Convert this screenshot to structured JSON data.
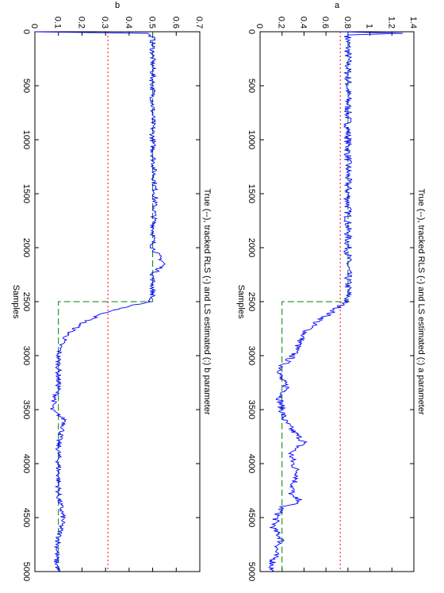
{
  "chart_data": [
    {
      "type": "line",
      "panel": "top",
      "title": "True (--), tracked RLS (-) and LS estimated (:) a parameter",
      "xlabel": "Samples",
      "ylabel": "a",
      "xlim": [
        0,
        5000
      ],
      "ylim": [
        0,
        1.4
      ],
      "xticks": [
        "0",
        "500",
        "1000",
        "1500",
        "2000",
        "2500",
        "3000",
        "3500",
        "4000",
        "4500",
        "5000"
      ],
      "yticks": [
        "0",
        "0.2",
        "0.4",
        "0.6",
        "0.8",
        "1",
        "1.2",
        "1.4"
      ],
      "grid": false,
      "series": [
        {
          "style": "dashed",
          "color": "#008000",
          "points": [
            [
              0,
              0.8
            ],
            [
              2500,
              0.8
            ],
            [
              2500,
              0.2
            ],
            [
              5000,
              0.2
            ]
          ]
        },
        {
          "style": "dotted",
          "color": "#ff0000",
          "points": [
            [
              0,
              0.73
            ],
            [
              5000,
              0.73
            ]
          ]
        },
        {
          "style": "solid",
          "color": "#0000ff",
          "points": [
            [
              0,
              0.75
            ],
            [
              15,
              1.3
            ],
            [
              30,
              0.8
            ],
            [
              100,
              0.8
            ],
            [
              500,
              0.8
            ],
            [
              1000,
              0.8
            ],
            [
              1500,
              0.8
            ],
            [
              2000,
              0.8
            ],
            [
              2450,
              0.8
            ],
            [
              2500,
              0.78
            ],
            [
              2600,
              0.65
            ],
            [
              2700,
              0.5
            ],
            [
              2800,
              0.4
            ],
            [
              2900,
              0.35
            ],
            [
              3000,
              0.3
            ],
            [
              3100,
              0.2
            ],
            [
              3200,
              0.18
            ],
            [
              3300,
              0.25
            ],
            [
              3400,
              0.18
            ],
            [
              3500,
              0.2
            ],
            [
              3600,
              0.22
            ],
            [
              3700,
              0.3
            ],
            [
              3800,
              0.4
            ],
            [
              3900,
              0.28
            ],
            [
              4000,
              0.3
            ],
            [
              4100,
              0.35
            ],
            [
              4200,
              0.3
            ],
            [
              4300,
              0.28
            ],
            [
              4350,
              0.38
            ],
            [
              4400,
              0.2
            ],
            [
              4500,
              0.15
            ],
            [
              4600,
              0.12
            ],
            [
              4700,
              0.2
            ],
            [
              4800,
              0.15
            ],
            [
              4900,
              0.12
            ],
            [
              5000,
              0.1
            ]
          ],
          "noise": 0.035
        }
      ]
    },
    {
      "type": "line",
      "panel": "bottom",
      "title": "True (--), tracked RLS (-) and LS estimated (:) b parameter",
      "xlabel": "Samples",
      "ylabel": "b",
      "xlim": [
        0,
        5000
      ],
      "ylim": [
        0,
        0.7
      ],
      "xticks": [
        "0",
        "500",
        "1000",
        "1500",
        "2000",
        "2500",
        "3000",
        "3500",
        "4000",
        "4500",
        "5000"
      ],
      "yticks": [
        "0",
        "0.1",
        "0.2",
        "0.3",
        "0.4",
        "0.5",
        "0.6",
        "0.7"
      ],
      "grid": false,
      "series": [
        {
          "style": "dashed",
          "color": "#008000",
          "points": [
            [
              0,
              0.5
            ],
            [
              2500,
              0.5
            ],
            [
              2500,
              0.1
            ],
            [
              5000,
              0.1
            ]
          ]
        },
        {
          "style": "dotted",
          "color": "#ff0000",
          "points": [
            [
              0,
              0.31
            ],
            [
              5000,
              0.31
            ]
          ]
        },
        {
          "style": "solid",
          "color": "#0000ff",
          "points": [
            [
              0,
              0.0
            ],
            [
              15,
              0.48
            ],
            [
              50,
              0.5
            ],
            [
              500,
              0.5
            ],
            [
              1000,
              0.5
            ],
            [
              1500,
              0.51
            ],
            [
              2000,
              0.5
            ],
            [
              2150,
              0.55
            ],
            [
              2250,
              0.5
            ],
            [
              2450,
              0.5
            ],
            [
              2500,
              0.48
            ],
            [
              2600,
              0.3
            ],
            [
              2700,
              0.2
            ],
            [
              2800,
              0.14
            ],
            [
              2900,
              0.11
            ],
            [
              3000,
              0.1
            ],
            [
              3300,
              0.1
            ],
            [
              3500,
              0.07
            ],
            [
              3600,
              0.13
            ],
            [
              3800,
              0.1
            ],
            [
              4000,
              0.1
            ],
            [
              4300,
              0.1
            ],
            [
              4500,
              0.12
            ],
            [
              4700,
              0.1
            ],
            [
              4900,
              0.09
            ],
            [
              5000,
              0.1
            ]
          ],
          "noise": 0.012
        }
      ]
    }
  ]
}
